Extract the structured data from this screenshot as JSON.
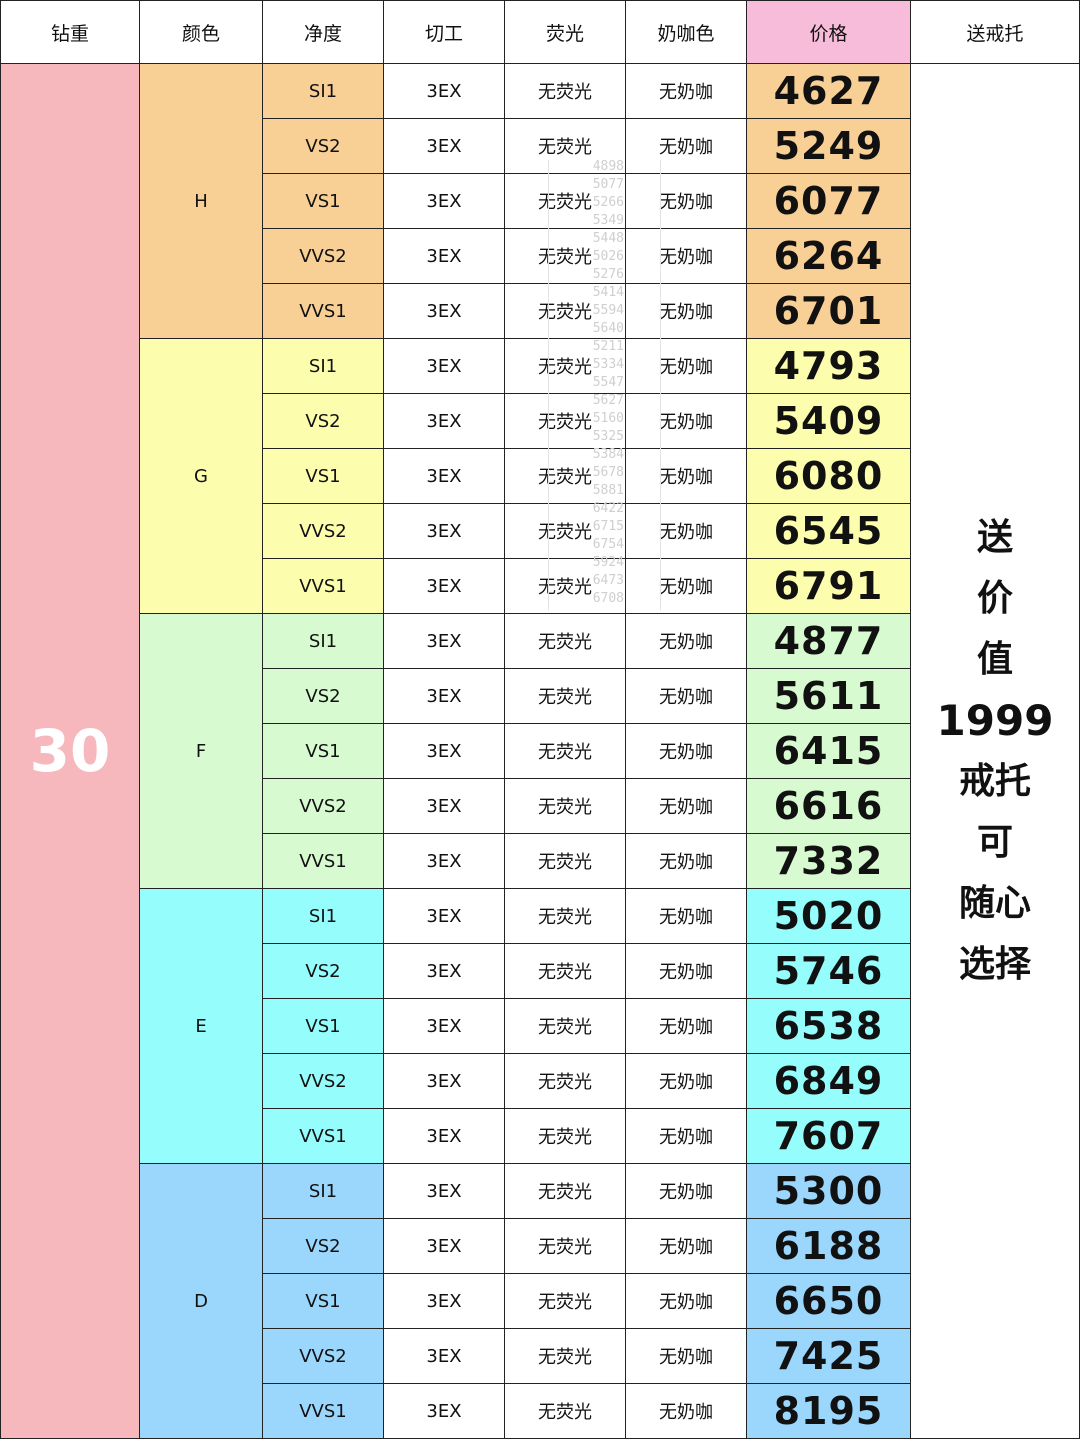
{
  "headers": [
    "钻重",
    "颜色",
    "净度",
    "切工",
    "荧光",
    "奶咖色",
    "价格",
    "送戒托"
  ],
  "carat": "30",
  "cut_value": "3EX",
  "fluorescence_value": "无荧光",
  "milky_value": "无奶咖",
  "gift_lines": [
    "送",
    "价",
    "值",
    "1999",
    "戒托",
    "可",
    "随心",
    "选择"
  ],
  "colors": {
    "H": "#f8d096",
    "G": "#fdfdae",
    "F": "#d8fad0",
    "E": "#95fefd",
    "D": "#9bd6fd",
    "carat_bg": "#f7b8bd",
    "price_header_bg": "#f7bcd9"
  },
  "groups": [
    {
      "color": "H",
      "rows": [
        {
          "clarity": "SI1",
          "price": "4627"
        },
        {
          "clarity": "VS2",
          "price": "5249"
        },
        {
          "clarity": "VS1",
          "price": "6077"
        },
        {
          "clarity": "VVS2",
          "price": "6264"
        },
        {
          "clarity": "VVS1",
          "price": "6701"
        }
      ]
    },
    {
      "color": "G",
      "rows": [
        {
          "clarity": "SI1",
          "price": "4793"
        },
        {
          "clarity": "VS2",
          "price": "5409"
        },
        {
          "clarity": "VS1",
          "price": "6080"
        },
        {
          "clarity": "VVS2",
          "price": "6545"
        },
        {
          "clarity": "VVS1",
          "price": "6791"
        }
      ]
    },
    {
      "color": "F",
      "rows": [
        {
          "clarity": "SI1",
          "price": "4877"
        },
        {
          "clarity": "VS2",
          "price": "5611"
        },
        {
          "clarity": "VS1",
          "price": "6415"
        },
        {
          "clarity": "VVS2",
          "price": "6616"
        },
        {
          "clarity": "VVS1",
          "price": "7332"
        }
      ]
    },
    {
      "color": "E",
      "rows": [
        {
          "clarity": "SI1",
          "price": "5020"
        },
        {
          "clarity": "VS2",
          "price": "5746"
        },
        {
          "clarity": "VS1",
          "price": "6538"
        },
        {
          "clarity": "VVS2",
          "price": "6849"
        },
        {
          "clarity": "VVS1",
          "price": "7607"
        }
      ]
    },
    {
      "color": "D",
      "rows": [
        {
          "clarity": "SI1",
          "price": "5300"
        },
        {
          "clarity": "VS2",
          "price": "6188"
        },
        {
          "clarity": "VS1",
          "price": "6650"
        },
        {
          "clarity": "VVS2",
          "price": "7425"
        },
        {
          "clarity": "VVS1",
          "price": "8195"
        }
      ]
    }
  ],
  "watermark_numbers": [
    "4898",
    "5077",
    "5266",
    "5349",
    "5448",
    "5026",
    "5276",
    "5414",
    "5594",
    "5640",
    "5211",
    "5334",
    "5547",
    "5627",
    "5160",
    "5325",
    "5384",
    "5678",
    "5881",
    "6422",
    "6715",
    "6754",
    "5924",
    "6473",
    "6708"
  ]
}
